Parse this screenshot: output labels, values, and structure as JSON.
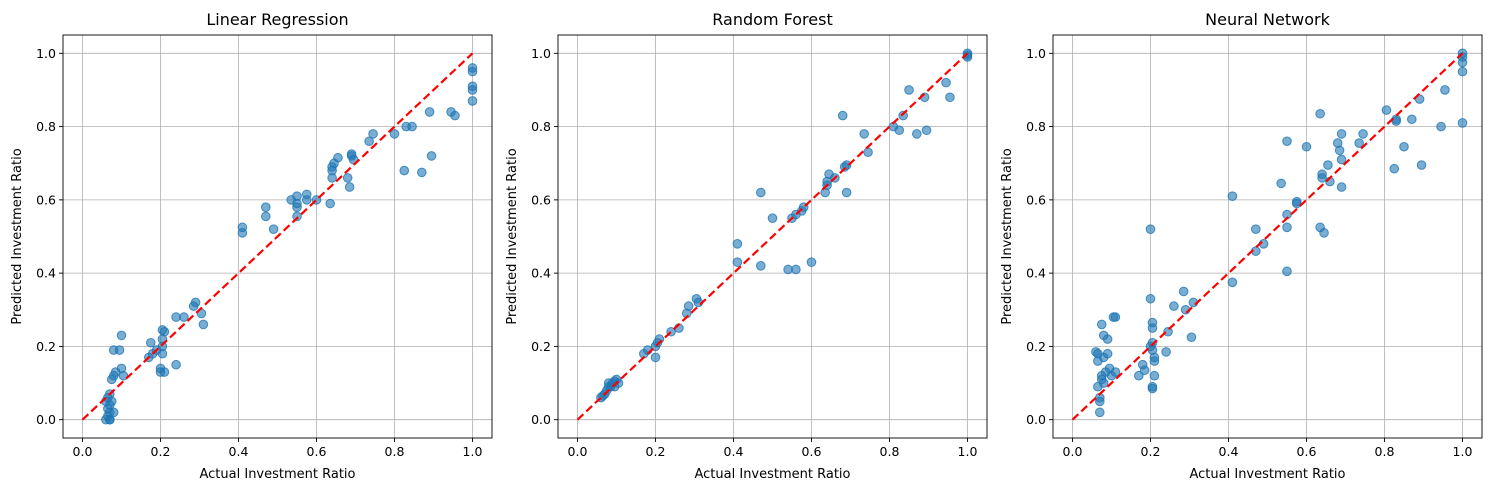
{
  "figure": {
    "background": "#ffffff"
  },
  "chart_data": [
    {
      "type": "scatter",
      "title": "Linear Regression",
      "xlabel": "Actual Investment Ratio",
      "ylabel": "Predicted Investment Ratio",
      "xlim": [
        -0.05,
        1.05
      ],
      "ylim": [
        -0.05,
        1.05
      ],
      "ticks": [
        0.0,
        0.2,
        0.4,
        0.6,
        0.8,
        1.0
      ],
      "tick_labels": [
        "0.0",
        "0.2",
        "0.4",
        "0.6",
        "0.8",
        "1.0"
      ],
      "grid": true,
      "reference_line": {
        "from": [
          0,
          0
        ],
        "to": [
          1,
          1
        ],
        "color": "#ff0000",
        "style": "dashed"
      },
      "point_color": "#1f77b4",
      "points": [
        [
          0.06,
          0.0
        ],
        [
          0.065,
          0.01
        ],
        [
          0.07,
          0.0
        ],
        [
          0.07,
          0.02
        ],
        [
          0.065,
          0.03
        ],
        [
          0.07,
          0.04
        ],
        [
          0.075,
          0.05
        ],
        [
          0.065,
          0.06
        ],
        [
          0.07,
          0.07
        ],
        [
          0.06,
          0.05
        ],
        [
          0.08,
          0.02
        ],
        [
          0.07,
          0.0
        ],
        [
          0.075,
          0.11
        ],
        [
          0.08,
          0.12
        ],
        [
          0.085,
          0.13
        ],
        [
          0.08,
          0.19
        ],
        [
          0.095,
          0.19
        ],
        [
          0.1,
          0.23
        ],
        [
          0.1,
          0.14
        ],
        [
          0.105,
          0.12
        ],
        [
          0.17,
          0.17
        ],
        [
          0.175,
          0.21
        ],
        [
          0.18,
          0.18
        ],
        [
          0.19,
          0.19
        ],
        [
          0.2,
          0.13
        ],
        [
          0.2,
          0.14
        ],
        [
          0.205,
          0.18
        ],
        [
          0.205,
          0.2
        ],
        [
          0.205,
          0.22
        ],
        [
          0.205,
          0.245
        ],
        [
          0.21,
          0.24
        ],
        [
          0.21,
          0.13
        ],
        [
          0.24,
          0.28
        ],
        [
          0.24,
          0.15
        ],
        [
          0.26,
          0.28
        ],
        [
          0.285,
          0.31
        ],
        [
          0.29,
          0.32
        ],
        [
          0.305,
          0.29
        ],
        [
          0.31,
          0.26
        ],
        [
          0.41,
          0.525
        ],
        [
          0.41,
          0.51
        ],
        [
          0.47,
          0.58
        ],
        [
          0.47,
          0.555
        ],
        [
          0.49,
          0.52
        ],
        [
          0.535,
          0.6
        ],
        [
          0.55,
          0.61
        ],
        [
          0.55,
          0.59
        ],
        [
          0.55,
          0.58
        ],
        [
          0.55,
          0.555
        ],
        [
          0.575,
          0.6
        ],
        [
          0.575,
          0.615
        ],
        [
          0.6,
          0.6
        ],
        [
          0.635,
          0.59
        ],
        [
          0.64,
          0.66
        ],
        [
          0.64,
          0.68
        ],
        [
          0.64,
          0.69
        ],
        [
          0.645,
          0.7
        ],
        [
          0.655,
          0.715
        ],
        [
          0.68,
          0.66
        ],
        [
          0.685,
          0.635
        ],
        [
          0.69,
          0.725
        ],
        [
          0.69,
          0.72
        ],
        [
          0.695,
          0.71
        ],
        [
          0.735,
          0.76
        ],
        [
          0.745,
          0.78
        ],
        [
          0.8,
          0.78
        ],
        [
          0.825,
          0.68
        ],
        [
          0.83,
          0.8
        ],
        [
          0.845,
          0.8
        ],
        [
          0.87,
          0.675
        ],
        [
          0.89,
          0.84
        ],
        [
          0.895,
          0.72
        ],
        [
          0.945,
          0.84
        ],
        [
          0.955,
          0.83
        ],
        [
          1.0,
          0.96
        ],
        [
          1.0,
          0.95
        ],
        [
          1.0,
          0.91
        ],
        [
          1.0,
          0.9
        ],
        [
          1.0,
          0.87
        ]
      ]
    },
    {
      "type": "scatter",
      "title": "Random Forest",
      "xlabel": "Actual Investment Ratio",
      "ylabel": "Predicted Investment Ratio",
      "xlim": [
        -0.05,
        1.05
      ],
      "ylim": [
        -0.05,
        1.05
      ],
      "ticks": [
        0.0,
        0.2,
        0.4,
        0.6,
        0.8,
        1.0
      ],
      "tick_labels": [
        "0.0",
        "0.2",
        "0.4",
        "0.6",
        "0.8",
        "1.0"
      ],
      "grid": true,
      "reference_line": {
        "from": [
          0,
          0
        ],
        "to": [
          1,
          1
        ],
        "color": "#ff0000",
        "style": "dashed"
      },
      "point_color": "#1f77b4",
      "points": [
        [
          0.06,
          0.06
        ],
        [
          0.065,
          0.065
        ],
        [
          0.07,
          0.07
        ],
        [
          0.075,
          0.08
        ],
        [
          0.08,
          0.09
        ],
        [
          0.08,
          0.1
        ],
        [
          0.085,
          0.09
        ],
        [
          0.09,
          0.1
        ],
        [
          0.095,
          0.105
        ],
        [
          0.095,
          0.09
        ],
        [
          0.1,
          0.11
        ],
        [
          0.105,
          0.1
        ],
        [
          0.17,
          0.18
        ],
        [
          0.18,
          0.19
        ],
        [
          0.2,
          0.17
        ],
        [
          0.2,
          0.2
        ],
        [
          0.205,
          0.21
        ],
        [
          0.21,
          0.22
        ],
        [
          0.24,
          0.24
        ],
        [
          0.26,
          0.25
        ],
        [
          0.28,
          0.29
        ],
        [
          0.285,
          0.31
        ],
        [
          0.305,
          0.33
        ],
        [
          0.31,
          0.32
        ],
        [
          0.41,
          0.48
        ],
        [
          0.41,
          0.43
        ],
        [
          0.47,
          0.62
        ],
        [
          0.47,
          0.42
        ],
        [
          0.5,
          0.55
        ],
        [
          0.54,
          0.41
        ],
        [
          0.55,
          0.55
        ],
        [
          0.56,
          0.41
        ],
        [
          0.56,
          0.56
        ],
        [
          0.575,
          0.57
        ],
        [
          0.58,
          0.58
        ],
        [
          0.6,
          0.43
        ],
        [
          0.635,
          0.62
        ],
        [
          0.64,
          0.64
        ],
        [
          0.64,
          0.65
        ],
        [
          0.645,
          0.67
        ],
        [
          0.66,
          0.66
        ],
        [
          0.68,
          0.83
        ],
        [
          0.685,
          0.69
        ],
        [
          0.69,
          0.62
        ],
        [
          0.69,
          0.695
        ],
        [
          0.735,
          0.78
        ],
        [
          0.745,
          0.73
        ],
        [
          0.81,
          0.8
        ],
        [
          0.825,
          0.79
        ],
        [
          0.835,
          0.83
        ],
        [
          0.85,
          0.9
        ],
        [
          0.87,
          0.78
        ],
        [
          0.89,
          0.88
        ],
        [
          0.895,
          0.79
        ],
        [
          0.945,
          0.92
        ],
        [
          0.955,
          0.88
        ],
        [
          1.0,
          1.0
        ],
        [
          1.0,
          0.99
        ],
        [
          1.0,
          0.995
        ]
      ]
    },
    {
      "type": "scatter",
      "title": "Neural Network",
      "xlabel": "Actual Investment Ratio",
      "ylabel": "Predicted Investment Ratio",
      "xlim": [
        -0.05,
        1.05
      ],
      "ylim": [
        -0.05,
        1.05
      ],
      "ticks": [
        0.0,
        0.2,
        0.4,
        0.6,
        0.8,
        1.0
      ],
      "tick_labels": [
        "0.0",
        "0.2",
        "0.4",
        "0.6",
        "0.8",
        "1.0"
      ],
      "grid": true,
      "reference_line": {
        "from": [
          0,
          0
        ],
        "to": [
          1,
          1
        ],
        "color": "#ff0000",
        "style": "dashed"
      },
      "point_color": "#1f77b4",
      "points": [
        [
          0.06,
          0.185
        ],
        [
          0.065,
          0.18
        ],
        [
          0.065,
          0.09
        ],
        [
          0.07,
          0.05
        ],
        [
          0.07,
          0.02
        ],
        [
          0.075,
          0.11
        ],
        [
          0.075,
          0.12
        ],
        [
          0.075,
          0.26
        ],
        [
          0.08,
          0.17
        ],
        [
          0.08,
          0.23
        ],
        [
          0.08,
          0.1
        ],
        [
          0.085,
          0.13
        ],
        [
          0.09,
          0.22
        ],
        [
          0.09,
          0.18
        ],
        [
          0.095,
          0.14
        ],
        [
          0.1,
          0.12
        ],
        [
          0.105,
          0.28
        ],
        [
          0.11,
          0.28
        ],
        [
          0.11,
          0.13
        ],
        [
          0.065,
          0.16
        ],
        [
          0.07,
          0.06
        ],
        [
          0.17,
          0.12
        ],
        [
          0.18,
          0.15
        ],
        [
          0.185,
          0.135
        ],
        [
          0.2,
          0.33
        ],
        [
          0.2,
          0.52
        ],
        [
          0.2,
          0.2
        ],
        [
          0.205,
          0.09
        ],
        [
          0.205,
          0.085
        ],
        [
          0.205,
          0.19
        ],
        [
          0.205,
          0.21
        ],
        [
          0.205,
          0.25
        ],
        [
          0.205,
          0.265
        ],
        [
          0.21,
          0.12
        ],
        [
          0.21,
          0.16
        ],
        [
          0.21,
          0.17
        ],
        [
          0.24,
          0.185
        ],
        [
          0.245,
          0.24
        ],
        [
          0.26,
          0.31
        ],
        [
          0.285,
          0.35
        ],
        [
          0.29,
          0.3
        ],
        [
          0.305,
          0.225
        ],
        [
          0.31,
          0.32
        ],
        [
          0.41,
          0.61
        ],
        [
          0.41,
          0.375
        ],
        [
          0.47,
          0.52
        ],
        [
          0.47,
          0.46
        ],
        [
          0.49,
          0.48
        ],
        [
          0.535,
          0.645
        ],
        [
          0.55,
          0.76
        ],
        [
          0.55,
          0.56
        ],
        [
          0.55,
          0.525
        ],
        [
          0.55,
          0.405
        ],
        [
          0.575,
          0.59
        ],
        [
          0.575,
          0.595
        ],
        [
          0.6,
          0.745
        ],
        [
          0.635,
          0.835
        ],
        [
          0.635,
          0.525
        ],
        [
          0.64,
          0.67
        ],
        [
          0.64,
          0.66
        ],
        [
          0.645,
          0.51
        ],
        [
          0.655,
          0.695
        ],
        [
          0.66,
          0.65
        ],
        [
          0.68,
          0.755
        ],
        [
          0.685,
          0.735
        ],
        [
          0.69,
          0.78
        ],
        [
          0.69,
          0.635
        ],
        [
          0.69,
          0.71
        ],
        [
          0.735,
          0.755
        ],
        [
          0.745,
          0.78
        ],
        [
          0.805,
          0.845
        ],
        [
          0.825,
          0.685
        ],
        [
          0.83,
          0.815
        ],
        [
          0.83,
          0.82
        ],
        [
          0.85,
          0.745
        ],
        [
          0.87,
          0.82
        ],
        [
          0.89,
          0.875
        ],
        [
          0.895,
          0.695
        ],
        [
          0.945,
          0.8
        ],
        [
          0.955,
          0.9
        ],
        [
          1.0,
          1.0
        ],
        [
          1.0,
          0.99
        ],
        [
          1.0,
          0.975
        ],
        [
          1.0,
          0.95
        ],
        [
          1.0,
          0.81
        ]
      ]
    }
  ]
}
